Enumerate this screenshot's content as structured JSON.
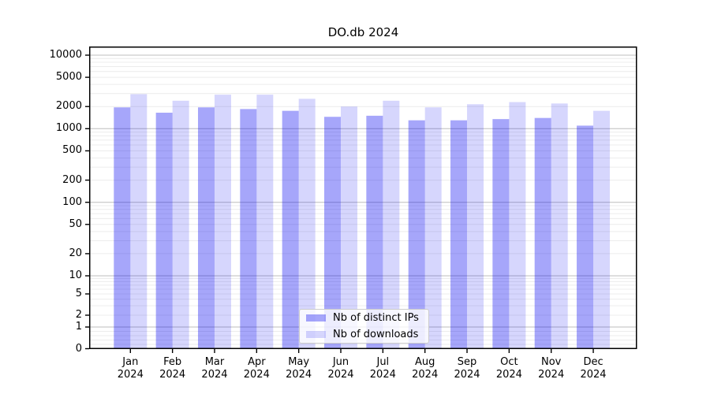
{
  "title": "DO.db 2024",
  "chart_data": {
    "type": "bar",
    "title": "DO.db 2024",
    "categories": [
      "Jan",
      "Feb",
      "Mar",
      "Apr",
      "May",
      "Jun",
      "Jul",
      "Aug",
      "Sep",
      "Oct",
      "Nov",
      "Dec"
    ],
    "category_year": "2024",
    "series": [
      {
        "name": "Nb of distinct IPs",
        "key": "distinct-ips",
        "fill": "rgba(0,0,240,0.35)",
        "approx_hex": "#a6a6f7",
        "values": [
          1950,
          1650,
          1950,
          1850,
          1750,
          1450,
          1500,
          1300,
          1300,
          1350,
          1400,
          1100
        ]
      },
      {
        "name": "Nb of downloads",
        "key": "downloads",
        "fill": "rgba(0,0,240,0.16)",
        "approx_hex": "#dcdcfb",
        "values": [
          2950,
          2400,
          2900,
          2900,
          2550,
          2000,
          2400,
          1950,
          2150,
          2300,
          2200,
          1750
        ]
      }
    ],
    "yscale": "symlog",
    "ylim": [
      0,
      12000
    ],
    "y_ticks": [
      10000,
      5000,
      2000,
      1000,
      500,
      200,
      100,
      50,
      20,
      10,
      5,
      2,
      1,
      0
    ],
    "xlabel": "",
    "ylabel": "",
    "grid": "both",
    "legend_position": "lower center",
    "colors": {
      "major_grid": "#bdbdbd",
      "minor_grid": "#ececec",
      "spine": "#000000"
    }
  }
}
